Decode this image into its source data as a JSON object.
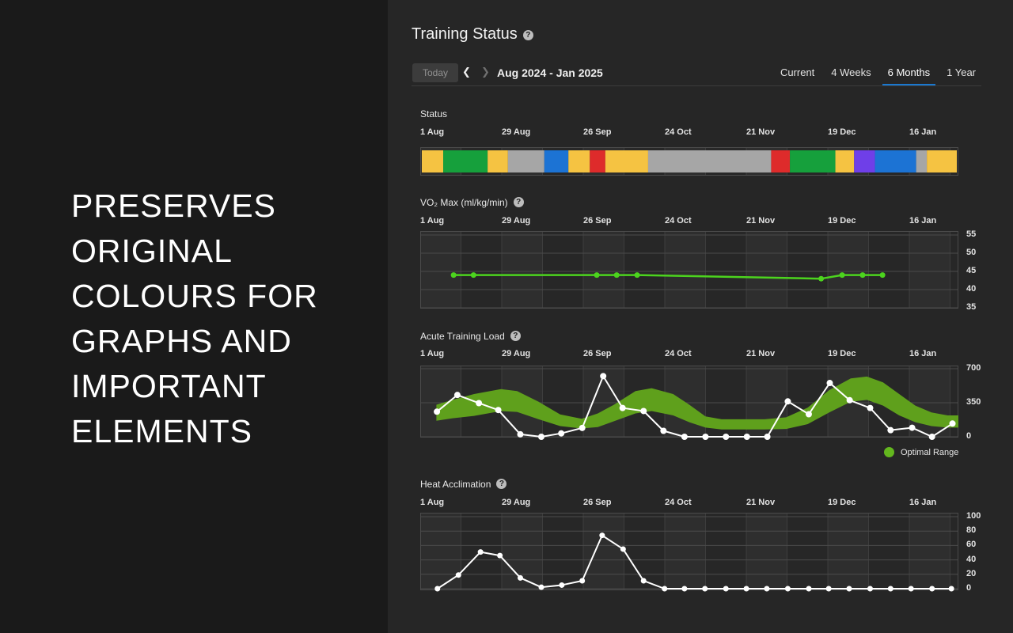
{
  "left_panel": {
    "lines": [
      "PRESERVES",
      "ORIGINAL",
      "COLOURS FOR",
      "GRAPHS AND",
      "IMPORTANT",
      "ELEMENTS"
    ]
  },
  "header": {
    "title": "Training Status",
    "help_glyph": "?"
  },
  "toolbar": {
    "today_label": "Today",
    "prev_glyph": "❮",
    "next_glyph": "❯",
    "date_range": "Aug 2024 - Jan 2025",
    "tabs": [
      {
        "label": "Current",
        "active": false
      },
      {
        "label": "4 Weeks",
        "active": false
      },
      {
        "label": "6 Months",
        "active": true
      },
      {
        "label": "1 Year",
        "active": false
      }
    ]
  },
  "dates": [
    "1 Aug",
    "29 Aug",
    "26 Sep",
    "24 Oct",
    "21 Nov",
    "19 Dec",
    "16 Jan"
  ],
  "colors": {
    "accent_blue": "#1a78cf",
    "status": {
      "yellow": "#F5C342",
      "green": "#16A03C",
      "gray": "#A6A6A6",
      "blue": "#1C73D4",
      "red": "#DE2B2B",
      "purple": "#6F3FE8"
    },
    "vo2_line": "#4CD41E",
    "optimal_band": "#5FA01C",
    "legend_dot": "#63B71E",
    "white_line": "#FFFFFF"
  },
  "sections": {
    "status": {
      "label": "Status"
    },
    "vo2": {
      "label": "VO₂ Max (ml/kg/min)",
      "help_glyph": "?"
    },
    "atl": {
      "label": "Acute Training Load",
      "help_glyph": "?",
      "legend": "Optimal Range"
    },
    "heat": {
      "label": "Heat Acclimation",
      "help_glyph": "?"
    }
  },
  "chart_data": [
    {
      "id": "status_timeline",
      "type": "bar",
      "title": "Status",
      "x_tick_labels": [
        "1 Aug",
        "29 Aug",
        "26 Sep",
        "24 Oct",
        "21 Nov",
        "19 Dec",
        "16 Jan"
      ],
      "segments": [
        {
          "color": "yellow",
          "width_pct": 4.0
        },
        {
          "color": "green",
          "width_pct": 8.3
        },
        {
          "color": "yellow",
          "width_pct": 3.8
        },
        {
          "color": "gray",
          "width_pct": 6.8
        },
        {
          "color": "blue",
          "width_pct": 4.5
        },
        {
          "color": "yellow",
          "width_pct": 4.0
        },
        {
          "color": "red",
          "width_pct": 2.9
        },
        {
          "color": "yellow",
          "width_pct": 8.0
        },
        {
          "color": "gray",
          "width_pct": 23.0
        },
        {
          "color": "red",
          "width_pct": 3.5
        },
        {
          "color": "green",
          "width_pct": 8.5
        },
        {
          "color": "yellow",
          "width_pct": 3.5
        },
        {
          "color": "purple",
          "width_pct": 3.9
        },
        {
          "color": "blue",
          "width_pct": 7.7
        },
        {
          "color": "gray",
          "width_pct": 2.0
        },
        {
          "color": "yellow",
          "width_pct": 5.6
        }
      ]
    },
    {
      "id": "vo2",
      "type": "line",
      "title": "VO₂ Max (ml/kg/min)",
      "x_tick_labels": [
        "1 Aug",
        "29 Aug",
        "26 Sep",
        "24 Oct",
        "21 Nov",
        "19 Dec",
        "16 Jan"
      ],
      "yticks": [
        55,
        50,
        45,
        40,
        35
      ],
      "ylim": [
        35,
        55
      ],
      "ylabel_side": "right",
      "line_color_key": "vo2_line",
      "points": [
        [
          0.062,
          44
        ],
        [
          0.099,
          44
        ],
        [
          0.328,
          44
        ],
        [
          0.365,
          44
        ],
        [
          0.403,
          44
        ],
        [
          0.745,
          43
        ],
        [
          0.784,
          44
        ],
        [
          0.822,
          44
        ],
        [
          0.859,
          44
        ]
      ]
    },
    {
      "id": "acute_training_load",
      "type": "area+line",
      "title": "Acute Training Load",
      "x_tick_labels": [
        "1 Aug",
        "29 Aug",
        "26 Sep",
        "24 Oct",
        "21 Nov",
        "19 Dec",
        "16 Jan"
      ],
      "yticks": [
        700,
        350,
        0
      ],
      "ylim": [
        0,
        700
      ],
      "ylabel_side": "right",
      "legend": "Optimal Range",
      "line_color_key": "white_line",
      "band_color_key": "optimal_band",
      "band_upper": [
        [
          0.03,
          330
        ],
        [
          0.06,
          380
        ],
        [
          0.1,
          440
        ],
        [
          0.15,
          490
        ],
        [
          0.18,
          470
        ],
        [
          0.22,
          360
        ],
        [
          0.26,
          230
        ],
        [
          0.3,
          185
        ],
        [
          0.33,
          240
        ],
        [
          0.36,
          330
        ],
        [
          0.4,
          470
        ],
        [
          0.43,
          500
        ],
        [
          0.47,
          440
        ],
        [
          0.5,
          330
        ],
        [
          0.53,
          210
        ],
        [
          0.56,
          180
        ],
        [
          0.64,
          180
        ],
        [
          0.68,
          200
        ],
        [
          0.72,
          300
        ],
        [
          0.76,
          480
        ],
        [
          0.8,
          600
        ],
        [
          0.83,
          620
        ],
        [
          0.86,
          560
        ],
        [
          0.89,
          440
        ],
        [
          0.92,
          320
        ],
        [
          0.95,
          250
        ],
        [
          0.98,
          220
        ],
        [
          1.0,
          220
        ]
      ],
      "band_lower": [
        [
          0.03,
          165
        ],
        [
          0.06,
          190
        ],
        [
          0.1,
          215
        ],
        [
          0.15,
          265
        ],
        [
          0.18,
          255
        ],
        [
          0.22,
          180
        ],
        [
          0.26,
          110
        ],
        [
          0.3,
          85
        ],
        [
          0.33,
          100
        ],
        [
          0.36,
          160
        ],
        [
          0.4,
          240
        ],
        [
          0.43,
          265
        ],
        [
          0.47,
          220
        ],
        [
          0.5,
          150
        ],
        [
          0.53,
          95
        ],
        [
          0.56,
          75
        ],
        [
          0.64,
          75
        ],
        [
          0.68,
          80
        ],
        [
          0.72,
          130
        ],
        [
          0.76,
          250
        ],
        [
          0.8,
          360
        ],
        [
          0.83,
          380
        ],
        [
          0.86,
          320
        ],
        [
          0.89,
          220
        ],
        [
          0.92,
          150
        ],
        [
          0.95,
          110
        ],
        [
          0.98,
          95
        ],
        [
          1.0,
          95
        ]
      ],
      "points": [
        [
          0.031,
          258
        ],
        [
          0.069,
          430
        ],
        [
          0.109,
          346
        ],
        [
          0.145,
          275
        ],
        [
          0.186,
          25
        ],
        [
          0.225,
          0
        ],
        [
          0.262,
          35
        ],
        [
          0.301,
          91
        ],
        [
          0.34,
          624
        ],
        [
          0.376,
          296
        ],
        [
          0.415,
          265
        ],
        [
          0.452,
          61
        ],
        [
          0.491,
          0
        ],
        [
          0.53,
          0
        ],
        [
          0.568,
          0
        ],
        [
          0.607,
          0
        ],
        [
          0.645,
          0
        ],
        [
          0.683,
          364
        ],
        [
          0.722,
          232
        ],
        [
          0.761,
          553
        ],
        [
          0.798,
          376
        ],
        [
          0.836,
          296
        ],
        [
          0.874,
          68
        ],
        [
          0.914,
          93
        ],
        [
          0.951,
          0
        ],
        [
          0.989,
          136
        ]
      ]
    },
    {
      "id": "heat_acclimation",
      "type": "line",
      "title": "Heat Acclimation",
      "x_tick_labels": [
        "1 Aug",
        "29 Aug",
        "26 Sep",
        "24 Oct",
        "21 Nov",
        "19 Dec",
        "16 Jan"
      ],
      "yticks": [
        100,
        80,
        60,
        40,
        20,
        0
      ],
      "ylim": [
        0,
        100
      ],
      "ylabel_side": "right",
      "line_color_key": "white_line",
      "points": [
        [
          0.032,
          0
        ],
        [
          0.071,
          19
        ],
        [
          0.112,
          51
        ],
        [
          0.148,
          46
        ],
        [
          0.186,
          15
        ],
        [
          0.225,
          2
        ],
        [
          0.263,
          5
        ],
        [
          0.301,
          11
        ],
        [
          0.338,
          74
        ],
        [
          0.377,
          55
        ],
        [
          0.415,
          11
        ],
        [
          0.454,
          0
        ],
        [
          0.491,
          0
        ],
        [
          0.529,
          0
        ],
        [
          0.568,
          0
        ],
        [
          0.606,
          0
        ],
        [
          0.644,
          0
        ],
        [
          0.683,
          0
        ],
        [
          0.722,
          0
        ],
        [
          0.759,
          0
        ],
        [
          0.797,
          0
        ],
        [
          0.836,
          0
        ],
        [
          0.874,
          0
        ],
        [
          0.912,
          0
        ],
        [
          0.951,
          0
        ],
        [
          0.987,
          0
        ]
      ]
    }
  ]
}
